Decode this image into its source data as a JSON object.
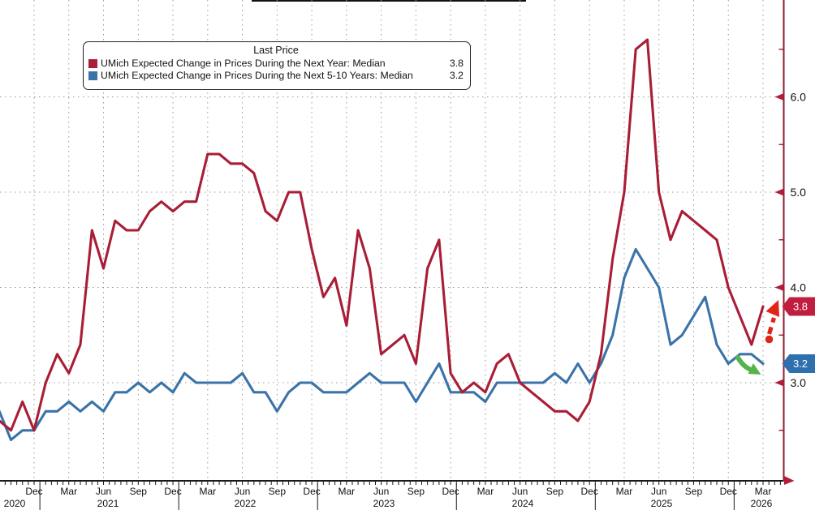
{
  "legend": {
    "title": "Last Price",
    "series": [
      {
        "label": "UMich Expected Change in Prices During the Next Year: Median",
        "value": "3.8",
        "color": "#a81e36"
      },
      {
        "label": "UMich Expected Change in Prices During the Next 5-10 Years: Median",
        "value": "3.2",
        "color": "#3a73a9"
      }
    ]
  },
  "price_badges": [
    {
      "value": "3.8",
      "color": "#c11d3e",
      "series": "next-year"
    },
    {
      "value": "3.2",
      "color": "#2e6fae",
      "series": "next-5-10-years"
    }
  ],
  "right_axis": {
    "tick_labels": [
      "3.0",
      "4.0",
      "5.0",
      "6.0"
    ],
    "minor_ticks": [
      2.5,
      3.5,
      4.5,
      5.5,
      6.5
    ],
    "axis_color": "#8f1d30",
    "marker_color": "#b01e3c",
    "label_color": "#111111"
  },
  "x_axis": {
    "quarter_labels": [
      "Dec",
      "Mar",
      "Jun",
      "Sep",
      "Dec",
      "Mar",
      "Jun",
      "Sep",
      "Dec",
      "Mar",
      "Jun",
      "Sep",
      "Dec",
      "Mar",
      "Jun",
      "Sep",
      "Dec",
      "Mar",
      "Jun",
      "Sep",
      "Dec",
      "Mar"
    ],
    "year_labels": [
      "2020",
      "2021",
      "2022",
      "2023",
      "2024",
      "2025",
      "2026"
    ]
  },
  "annotations": [
    {
      "name": "red-dashed-up-arrow",
      "style": "dashed line with dot base and large arrowhead",
      "direction": "up-right",
      "color": "#e02418",
      "meaning": "1-year expectations ticked up to 3.8"
    },
    {
      "name": "green-down-arrow",
      "style": "thick curved arrow",
      "direction": "down-right",
      "color": "#54b44c",
      "meaning": "5-10 year expectations eased to 3.2"
    }
  ],
  "chart_data": {
    "type": "line",
    "title": "Last Price",
    "x_start": "2020-09",
    "x_end": "2026-03",
    "freq": "monthly",
    "ylim": [
      2.0,
      7.0
    ],
    "y_major_gridlines": [
      3.0,
      4.0,
      5.0,
      6.0
    ],
    "grid": "dotted",
    "legend_position": "top-left",
    "series": [
      {
        "name": "UMich Expected Change in Prices During the Next Year: Median",
        "color": "#a81e36",
        "last_value": 3.8,
        "values": [
          2.6,
          2.5,
          2.8,
          2.5,
          3.0,
          3.3,
          3.1,
          3.4,
          4.6,
          4.2,
          4.7,
          4.6,
          4.6,
          4.8,
          4.9,
          4.8,
          4.9,
          4.9,
          5.4,
          5.4,
          5.3,
          5.3,
          5.2,
          4.8,
          4.7,
          5.0,
          5.0,
          4.4,
          3.9,
          4.1,
          3.6,
          4.6,
          4.2,
          3.3,
          3.4,
          3.5,
          3.2,
          4.2,
          4.5,
          3.1,
          2.9,
          3.0,
          2.9,
          3.2,
          3.3,
          3.0,
          2.9,
          2.8,
          2.7,
          2.7,
          2.6,
          2.8,
          3.3,
          4.3,
          5.0,
          6.5,
          6.6,
          5.0,
          4.5,
          4.8,
          4.7,
          4.6,
          4.5,
          4.0,
          3.7,
          3.4,
          3.8
        ]
      },
      {
        "name": "UMich Expected Change in Prices During the Next 5-10 Years: Median",
        "color": "#3a73a9",
        "last_value": 3.2,
        "values": [
          2.7,
          2.4,
          2.5,
          2.5,
          2.7,
          2.7,
          2.8,
          2.7,
          2.8,
          2.7,
          2.9,
          2.9,
          3.0,
          2.9,
          3.0,
          2.9,
          3.1,
          3.0,
          3.0,
          3.0,
          3.0,
          3.1,
          2.9,
          2.9,
          2.7,
          2.9,
          3.0,
          3.0,
          2.9,
          2.9,
          2.9,
          3.0,
          3.1,
          3.0,
          3.0,
          3.0,
          2.8,
          3.0,
          3.2,
          2.9,
          2.9,
          2.9,
          2.8,
          3.0,
          3.0,
          3.0,
          3.0,
          3.0,
          3.1,
          3.0,
          3.2,
          3.0,
          3.2,
          3.5,
          4.1,
          4.4,
          4.2,
          4.0,
          3.4,
          3.5,
          3.7,
          3.9,
          3.4,
          3.2,
          3.3,
          3.3,
          3.2
        ]
      }
    ]
  }
}
